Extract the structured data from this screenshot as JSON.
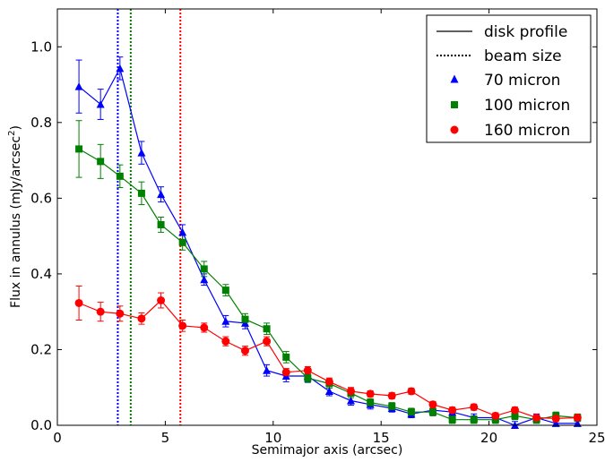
{
  "chart_data": {
    "type": "line",
    "xlabel": "Semimajor axis (arcsec)",
    "ylabel": "Flux in annulus (mJy/arcsec",
    "ylabel_sup": "2",
    "ylabel_close": ")",
    "xlim": [
      0,
      25
    ],
    "ylim": [
      0,
      1.1
    ],
    "xticks": [
      0,
      5,
      10,
      15,
      20,
      25
    ],
    "yticks": [
      0.0,
      0.2,
      0.4,
      0.6,
      0.8,
      1.0
    ],
    "xtick_labels": [
      "0",
      "5",
      "10",
      "15",
      "20",
      "25"
    ],
    "ytick_labels": [
      "0.0",
      "0.2",
      "0.4",
      "0.6",
      "0.8",
      "1.0"
    ],
    "grid": false,
    "legend_position": "top-right",
    "legend": {
      "disk_profile": "disk profile",
      "beam_size": "beam size",
      "items": [
        "70 micron",
        "100 micron",
        "160 micron"
      ]
    },
    "series": [
      {
        "name": "70 micron",
        "color": "#0000ff",
        "marker": "triangle",
        "beam": 2.8,
        "x": [
          1.0,
          2.0,
          2.9,
          3.9,
          4.8,
          5.8,
          6.8,
          7.8,
          8.7,
          9.7,
          10.6,
          11.6,
          12.6,
          13.6,
          14.5,
          15.5,
          16.4,
          17.4,
          18.3,
          19.3,
          20.3,
          21.2,
          22.2,
          23.1,
          24.1
        ],
        "y": [
          0.895,
          0.848,
          0.943,
          0.72,
          0.61,
          0.51,
          0.385,
          0.275,
          0.27,
          0.145,
          0.13,
          0.13,
          0.09,
          0.065,
          0.055,
          0.045,
          0.03,
          0.04,
          0.035,
          0.02,
          0.02,
          0.0,
          0.02,
          0.005,
          0.005
        ],
        "err": [
          0.07,
          0.04,
          0.03,
          0.03,
          0.02,
          0.02,
          0.015,
          0.015,
          0.015,
          0.015,
          0.015,
          0.015,
          0.012,
          0.012,
          0.012,
          0.01,
          0.01,
          0.01,
          0.01,
          0.01,
          0.01,
          0.01,
          0.01,
          0.01,
          0.01
        ]
      },
      {
        "name": "100 micron",
        "color": "#008000",
        "marker": "square",
        "beam": 3.4,
        "x": [
          1.0,
          2.0,
          2.9,
          3.9,
          4.8,
          5.8,
          6.8,
          7.8,
          8.7,
          9.7,
          10.6,
          11.6,
          12.6,
          13.6,
          14.5,
          15.5,
          16.4,
          17.4,
          18.3,
          19.3,
          20.3,
          21.2,
          22.2,
          23.1,
          24.1
        ],
        "y": [
          0.73,
          0.697,
          0.658,
          0.613,
          0.53,
          0.483,
          0.413,
          0.357,
          0.28,
          0.255,
          0.18,
          0.125,
          0.11,
          0.085,
          0.06,
          0.05,
          0.035,
          0.035,
          0.015,
          0.015,
          0.015,
          0.025,
          0.015,
          0.025,
          0.02
        ],
        "err": [
          0.075,
          0.045,
          0.03,
          0.03,
          0.02,
          0.02,
          0.02,
          0.015,
          0.015,
          0.015,
          0.015,
          0.012,
          0.012,
          0.012,
          0.01,
          0.01,
          0.01,
          0.01,
          0.01,
          0.01,
          0.01,
          0.01,
          0.01,
          0.01,
          0.01
        ]
      },
      {
        "name": "160 micron",
        "color": "#ff0000",
        "marker": "circle",
        "beam": 5.7,
        "x": [
          1.0,
          2.0,
          2.9,
          3.9,
          4.8,
          5.8,
          6.8,
          7.8,
          8.7,
          9.7,
          10.6,
          11.6,
          12.6,
          13.6,
          14.5,
          15.5,
          16.4,
          17.4,
          18.3,
          19.3,
          20.3,
          21.2,
          22.2,
          23.1,
          24.1
        ],
        "y": [
          0.323,
          0.3,
          0.295,
          0.282,
          0.33,
          0.263,
          0.258,
          0.222,
          0.197,
          0.222,
          0.14,
          0.145,
          0.115,
          0.09,
          0.083,
          0.078,
          0.09,
          0.055,
          0.04,
          0.048,
          0.025,
          0.04,
          0.02,
          0.018,
          0.02
        ],
        "err": [
          0.045,
          0.025,
          0.02,
          0.015,
          0.02,
          0.015,
          0.012,
          0.012,
          0.012,
          0.012,
          0.01,
          0.01,
          0.01,
          0.01,
          0.008,
          0.008,
          0.008,
          0.008,
          0.008,
          0.008,
          0.008,
          0.008,
          0.008,
          0.008,
          0.008
        ]
      }
    ]
  }
}
